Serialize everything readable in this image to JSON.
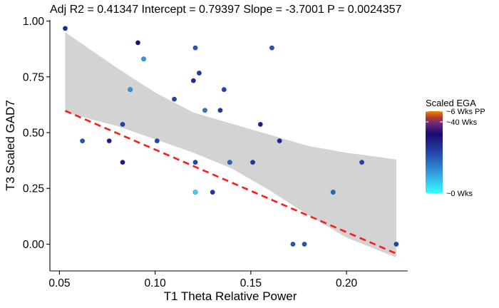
{
  "chart_data": {
    "type": "scatter",
    "title": "Adj R2 =  0.41347 Intercept = 0.79397  Slope = -3.7001  P = 0.0024357",
    "xlabel": "T1 Theta Relative Power",
    "ylabel": "T3 Scaled GAD7",
    "xlim": [
      0.045,
      0.232
    ],
    "ylim": [
      -0.12,
      1.005
    ],
    "x_ticks": [
      0.05,
      0.1,
      0.15,
      0.2
    ],
    "x_tick_labels": [
      "0.05",
      "0.10",
      "0.15",
      "0.20"
    ],
    "y_ticks": [
      0.0,
      0.25,
      0.5,
      0.75,
      1.0
    ],
    "y_tick_labels": [
      "0.00",
      "0.25",
      "0.50",
      "0.75",
      "1.00"
    ],
    "grid": false,
    "regression": {
      "intercept": 0.79397,
      "slope": -3.7001,
      "x_range": [
        0.053,
        0.226
      ],
      "color": "#ff1a1a",
      "style": "dashed"
    },
    "confidence_band": {
      "color": "#d3d3d3",
      "x": [
        0.053,
        0.08,
        0.1,
        0.12,
        0.14,
        0.16,
        0.18,
        0.2,
        0.226
      ],
      "lower": [
        0.59,
        0.53,
        0.47,
        0.41,
        0.34,
        0.24,
        0.13,
        0.03,
        -0.06
      ],
      "upper": [
        0.95,
        0.79,
        0.68,
        0.59,
        0.54,
        0.49,
        0.44,
        0.41,
        0.38
      ]
    },
    "points": [
      {
        "x": 0.053,
        "y": 0.967,
        "c": 0.4
      },
      {
        "x": 0.062,
        "y": 0.463,
        "c": 0.55
      },
      {
        "x": 0.076,
        "y": 0.463,
        "c": 0.35
      },
      {
        "x": 0.083,
        "y": 0.537,
        "c": 0.5
      },
      {
        "x": 0.083,
        "y": 0.367,
        "c": 0.35
      },
      {
        "x": 0.087,
        "y": 0.693,
        "c": 0.75
      },
      {
        "x": 0.091,
        "y": 0.903,
        "c": 0.3
      },
      {
        "x": 0.094,
        "y": 0.83,
        "c": 0.75
      },
      {
        "x": 0.101,
        "y": 0.463,
        "c": 0.5
      },
      {
        "x": 0.11,
        "y": 0.65,
        "c": 0.5
      },
      {
        "x": 0.12,
        "y": 0.733,
        "c": 0.4
      },
      {
        "x": 0.121,
        "y": 0.88,
        "c": 0.55
      },
      {
        "x": 0.121,
        "y": 0.233,
        "c": 0.9
      },
      {
        "x": 0.121,
        "y": 0.367,
        "c": 0.5
      },
      {
        "x": 0.123,
        "y": 0.767,
        "c": 0.45
      },
      {
        "x": 0.126,
        "y": 0.6,
        "c": 0.65
      },
      {
        "x": 0.13,
        "y": 0.233,
        "c": 0.45
      },
      {
        "x": 0.134,
        "y": 0.6,
        "c": 0.45
      },
      {
        "x": 0.136,
        "y": 0.693,
        "c": 0.5
      },
      {
        "x": 0.139,
        "y": 0.367,
        "c": 0.6
      },
      {
        "x": 0.151,
        "y": 0.367,
        "c": 0.45
      },
      {
        "x": 0.155,
        "y": 0.537,
        "c": 0.35
      },
      {
        "x": 0.161,
        "y": 0.88,
        "c": 0.55
      },
      {
        "x": 0.165,
        "y": 0.463,
        "c": 0.4
      },
      {
        "x": 0.172,
        "y": 0.0,
        "c": 0.55
      },
      {
        "x": 0.178,
        "y": 0.0,
        "c": 0.55
      },
      {
        "x": 0.193,
        "y": 0.233,
        "c": 0.6
      },
      {
        "x": 0.208,
        "y": 0.367,
        "c": 0.5
      },
      {
        "x": 0.226,
        "y": 0.0,
        "c": 0.5
      }
    ],
    "legend": {
      "title": "Scaled EGA",
      "position": "right",
      "labels": [
        "~6 Wks PP",
        "~40 Wks",
        "~0 Wks"
      ],
      "label_values": [
        1.0,
        0.87,
        0.0
      ],
      "gradient_stops": [
        {
          "offset": 0.0,
          "color": "#33ffff"
        },
        {
          "offset": 0.25,
          "color": "#3399dd"
        },
        {
          "offset": 0.5,
          "color": "#2244aa"
        },
        {
          "offset": 0.72,
          "color": "#1a0a70"
        },
        {
          "offset": 0.85,
          "color": "#6a2a7a"
        },
        {
          "offset": 0.93,
          "color": "#b8402a"
        },
        {
          "offset": 1.0,
          "color": "#ee8800"
        }
      ]
    }
  }
}
